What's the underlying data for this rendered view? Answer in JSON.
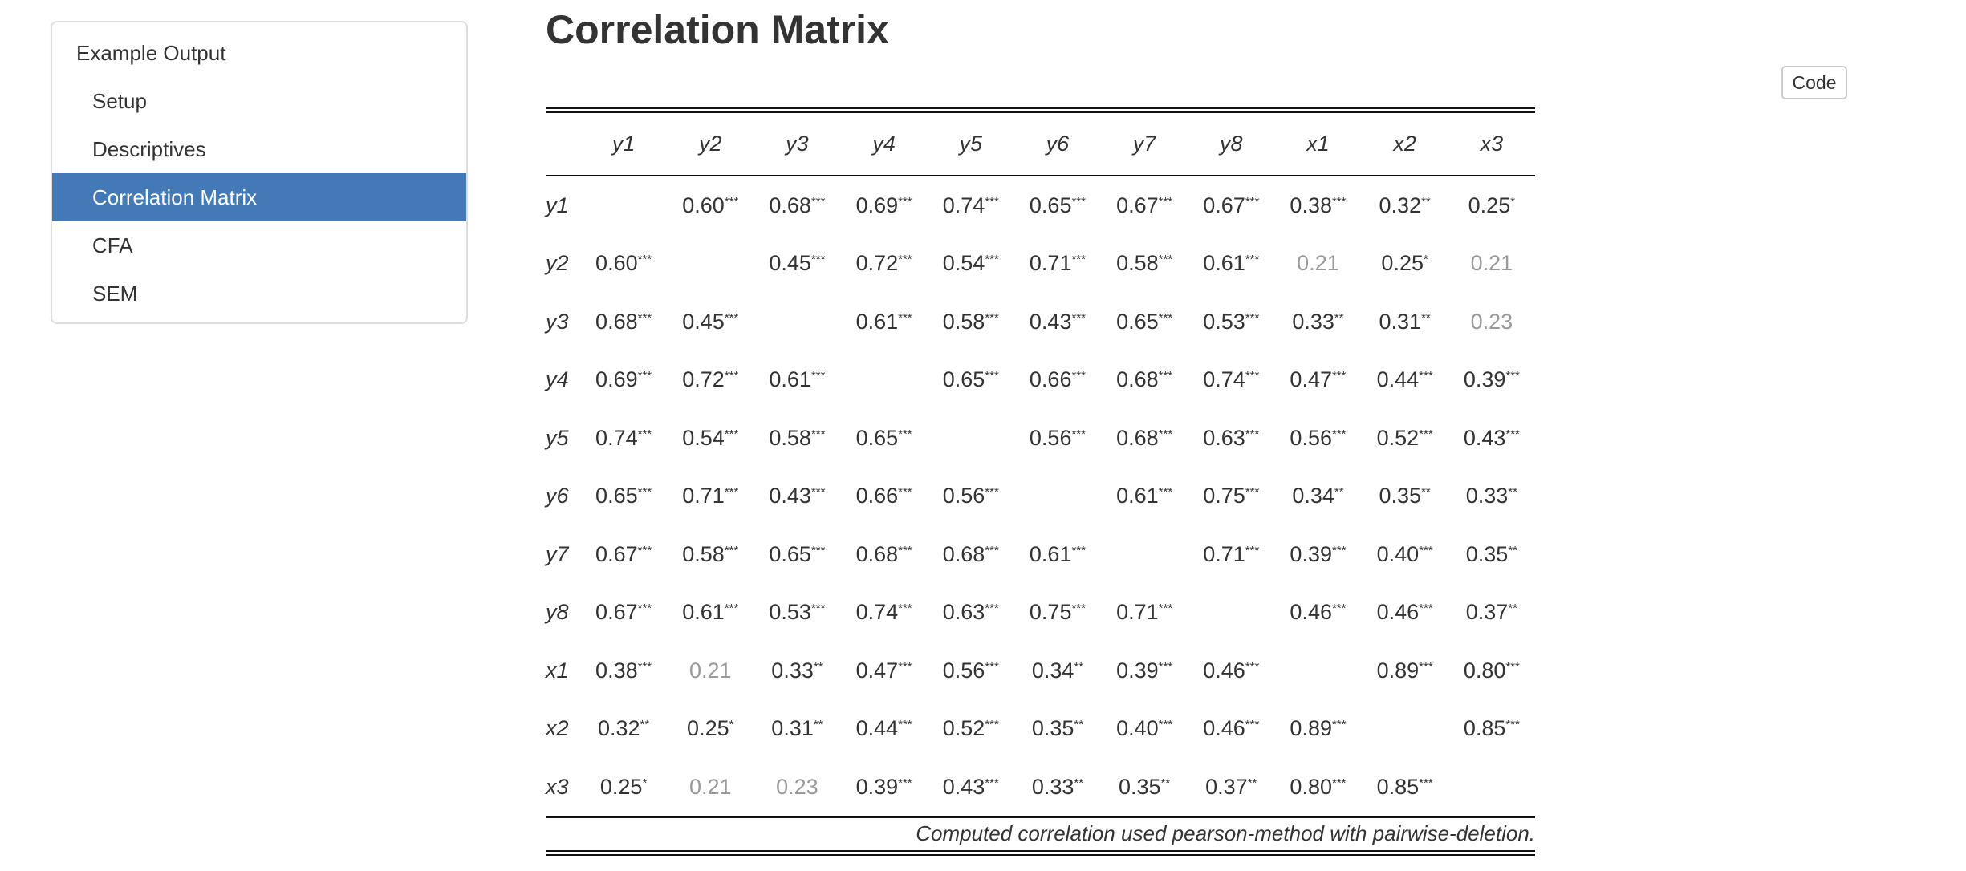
{
  "toc": {
    "items": [
      {
        "label": "Example Output",
        "level": "top",
        "active": false,
        "name": "toc-item-example-output"
      },
      {
        "label": "Setup",
        "level": "sub",
        "active": false,
        "name": "toc-item-setup"
      },
      {
        "label": "Descriptives",
        "level": "sub",
        "active": false,
        "name": "toc-item-descriptives"
      },
      {
        "label": "Correlation Matrix",
        "level": "sub",
        "active": true,
        "name": "toc-item-correlation-matrix"
      },
      {
        "label": "CFA",
        "level": "sub",
        "active": false,
        "name": "toc-item-cfa"
      },
      {
        "label": "SEM",
        "level": "sub",
        "active": false,
        "name": "toc-item-sem"
      }
    ]
  },
  "page": {
    "title": "Correlation Matrix",
    "code_button": "Code"
  },
  "matrix": {
    "variables": [
      "y1",
      "y2",
      "y3",
      "y4",
      "y5",
      "y6",
      "y7",
      "y8",
      "x1",
      "x2",
      "x3"
    ],
    "rows": [
      [
        "",
        "0.60***",
        "0.68***",
        "0.69***",
        "0.74***",
        "0.65***",
        "0.67***",
        "0.67***",
        "0.38***",
        "0.32**",
        "0.25*"
      ],
      [
        "0.60***",
        "",
        "0.45***",
        "0.72***",
        "0.54***",
        "0.71***",
        "0.58***",
        "0.61***",
        "0.21",
        "0.25*",
        "0.21"
      ],
      [
        "0.68***",
        "0.45***",
        "",
        "0.61***",
        "0.58***",
        "0.43***",
        "0.65***",
        "0.53***",
        "0.33**",
        "0.31**",
        "0.23"
      ],
      [
        "0.69***",
        "0.72***",
        "0.61***",
        "",
        "0.65***",
        "0.66***",
        "0.68***",
        "0.74***",
        "0.47***",
        "0.44***",
        "0.39***"
      ],
      [
        "0.74***",
        "0.54***",
        "0.58***",
        "0.65***",
        "",
        "0.56***",
        "0.68***",
        "0.63***",
        "0.56***",
        "0.52***",
        "0.43***"
      ],
      [
        "0.65***",
        "0.71***",
        "0.43***",
        "0.66***",
        "0.56***",
        "",
        "0.61***",
        "0.75***",
        "0.34**",
        "0.35**",
        "0.33**"
      ],
      [
        "0.67***",
        "0.58***",
        "0.65***",
        "0.68***",
        "0.68***",
        "0.61***",
        "",
        "0.71***",
        "0.39***",
        "0.40***",
        "0.35**"
      ],
      [
        "0.67***",
        "0.61***",
        "0.53***",
        "0.74***",
        "0.63***",
        "0.75***",
        "0.71***",
        "",
        "0.46***",
        "0.46***",
        "0.37**"
      ],
      [
        "0.38***",
        "0.21",
        "0.33**",
        "0.47***",
        "0.56***",
        "0.34**",
        "0.39***",
        "0.46***",
        "",
        "0.89***",
        "0.80***"
      ],
      [
        "0.32**",
        "0.25*",
        "0.31**",
        "0.44***",
        "0.52***",
        "0.35**",
        "0.40***",
        "0.46***",
        "0.89***",
        "",
        "0.85***"
      ],
      [
        "0.25*",
        "0.21",
        "0.23",
        "0.39***",
        "0.43***",
        "0.33**",
        "0.35**",
        "0.37**",
        "0.80***",
        "0.85***",
        ""
      ]
    ],
    "note": "Computed correlation used pearson-method with pairwise-deletion.",
    "nonsignificant_color": "#999999"
  },
  "colors": {
    "accent": "#4479b7",
    "text": "#333333",
    "border": "#dddddd"
  }
}
